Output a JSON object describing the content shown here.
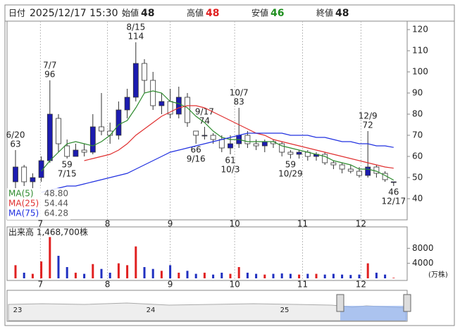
{
  "header": {
    "date_label": "日付",
    "date": "2025/12/17 15:30",
    "open_label": "始値",
    "open": "48",
    "high_label": "高値",
    "high": "48",
    "low_label": "安値",
    "low": "46",
    "close_label": "終値",
    "close": "48"
  },
  "chart_data": [
    {
      "type": "candlestick",
      "categories": [
        "6/20",
        null,
        null,
        null,
        "7/7",
        null,
        "7/15",
        null,
        null,
        null,
        null,
        null,
        null,
        null,
        "8/15",
        null,
        null,
        null,
        null,
        null,
        null,
        "9/16",
        "9/17",
        null,
        null,
        "10/3",
        "10/7",
        null,
        null,
        null,
        null,
        null,
        "10/29",
        null,
        null,
        null,
        null,
        null,
        null,
        null,
        null,
        "12/9",
        null,
        null,
        "12/17"
      ],
      "open": [
        48,
        55,
        48,
        50,
        58,
        78,
        65,
        60,
        63,
        62,
        74,
        72,
        70,
        82,
        88,
        104,
        96,
        84,
        86,
        80,
        88,
        72,
        70,
        70,
        68,
        64,
        66,
        70,
        66,
        65,
        67,
        66,
        62,
        61,
        62,
        60,
        61,
        57,
        56,
        54,
        53,
        51,
        55,
        52,
        48
      ],
      "high": [
        63,
        56,
        52,
        60,
        96,
        80,
        68,
        66,
        66,
        80,
        90,
        76,
        86,
        92,
        114,
        106,
        100,
        90,
        92,
        93,
        90,
        72,
        74,
        71,
        70,
        70,
        83,
        72,
        68,
        68,
        68,
        67,
        63,
        63,
        63,
        62,
        62,
        58,
        57,
        56,
        55,
        72,
        56,
        53,
        48
      ],
      "low": [
        45,
        46,
        45,
        48,
        57,
        62,
        59,
        60,
        60,
        61,
        70,
        66,
        68,
        78,
        86,
        90,
        82,
        80,
        78,
        78,
        74,
        66,
        68,
        66,
        62,
        61,
        64,
        64,
        63,
        62,
        64,
        60,
        59,
        59,
        58,
        58,
        56,
        54,
        52,
        52,
        50,
        50,
        50,
        48,
        46
      ],
      "close": [
        55,
        48,
        50,
        58,
        80,
        66,
        60,
        63,
        62,
        74,
        72,
        70,
        82,
        88,
        104,
        96,
        84,
        86,
        80,
        88,
        76,
        70,
        70,
        68,
        64,
        66,
        70,
        66,
        65,
        67,
        66,
        62,
        61,
        62,
        60,
        61,
        57,
        56,
        54,
        53,
        51,
        55,
        52,
        49,
        48
      ],
      "up_color": "#1c1cb0",
      "down_color": "#ffffff",
      "series": [
        {
          "name": "MA(5)",
          "color": "#2e8b2e",
          "values": [
            null,
            null,
            null,
            53,
            58,
            62,
            66,
            67,
            66,
            65,
            67,
            70,
            75,
            77,
            83,
            90,
            91,
            90,
            86,
            85,
            83,
            79,
            76,
            72,
            69,
            68,
            68,
            67,
            67,
            67,
            67,
            65,
            64,
            63,
            62,
            61,
            60,
            58,
            57,
            56,
            54,
            54,
            53,
            51,
            48.8
          ]
        },
        {
          "name": "MA(25)",
          "color": "#e03030",
          "values": [
            null,
            null,
            null,
            null,
            null,
            null,
            null,
            null,
            58,
            59,
            60,
            61,
            63,
            66,
            70,
            73,
            76,
            79,
            81,
            83,
            84,
            84,
            83,
            81,
            79,
            77,
            75,
            73,
            71,
            70,
            68,
            67,
            66,
            65,
            64,
            63,
            62,
            61,
            60,
            59,
            58,
            57,
            56,
            55,
            54.44
          ]
        },
        {
          "name": "MA(75)",
          "color": "#2030e0",
          "values": [
            null,
            null,
            null,
            43,
            44,
            45,
            46,
            46,
            47,
            48,
            49,
            50,
            51,
            52,
            54,
            56,
            58,
            60,
            62,
            63,
            64,
            65,
            66,
            67,
            68,
            69,
            70,
            71,
            71,
            71,
            71,
            71,
            70,
            70,
            70,
            69,
            69,
            68,
            67,
            67,
            66,
            66,
            65,
            65,
            64.28
          ]
        }
      ],
      "legend_values": [
        "48.80",
        "54.44",
        "64.28"
      ],
      "ylim": [
        30,
        124
      ],
      "yticks": [
        40,
        50,
        60,
        70,
        80,
        90,
        100,
        110,
        120
      ],
      "xticks": [
        {
          "value": 2.9,
          "label": "7"
        },
        {
          "value": 10.7,
          "label": "8"
        },
        {
          "value": 18,
          "label": "9"
        },
        {
          "value": 25.5,
          "label": "10"
        },
        {
          "value": 33.4,
          "label": "11"
        },
        {
          "value": 40.2,
          "label": "12"
        }
      ]
    },
    {
      "type": "volume",
      "title": "出来高 1,468,700株",
      "unit": "(万株)",
      "values": [
        3500,
        1500,
        1200,
        4500,
        11000,
        6000,
        3000,
        1500,
        1200,
        3800,
        2500,
        1500,
        4000,
        3500,
        8500,
        3000,
        2500,
        2000,
        3500,
        1500,
        2000,
        1200,
        1500,
        1000,
        1500,
        1200,
        3000,
        1500,
        1200,
        1000,
        1200,
        1300,
        1200,
        1000,
        1200,
        1200,
        1000,
        1200,
        1000,
        900,
        1000,
        4000,
        1500,
        1000,
        146.87
      ],
      "ylim": [
        0,
        13700
      ],
      "yticks": [
        4000,
        8000
      ]
    }
  ],
  "navigator": {
    "labels": [
      "23",
      "24",
      "25"
    ]
  }
}
